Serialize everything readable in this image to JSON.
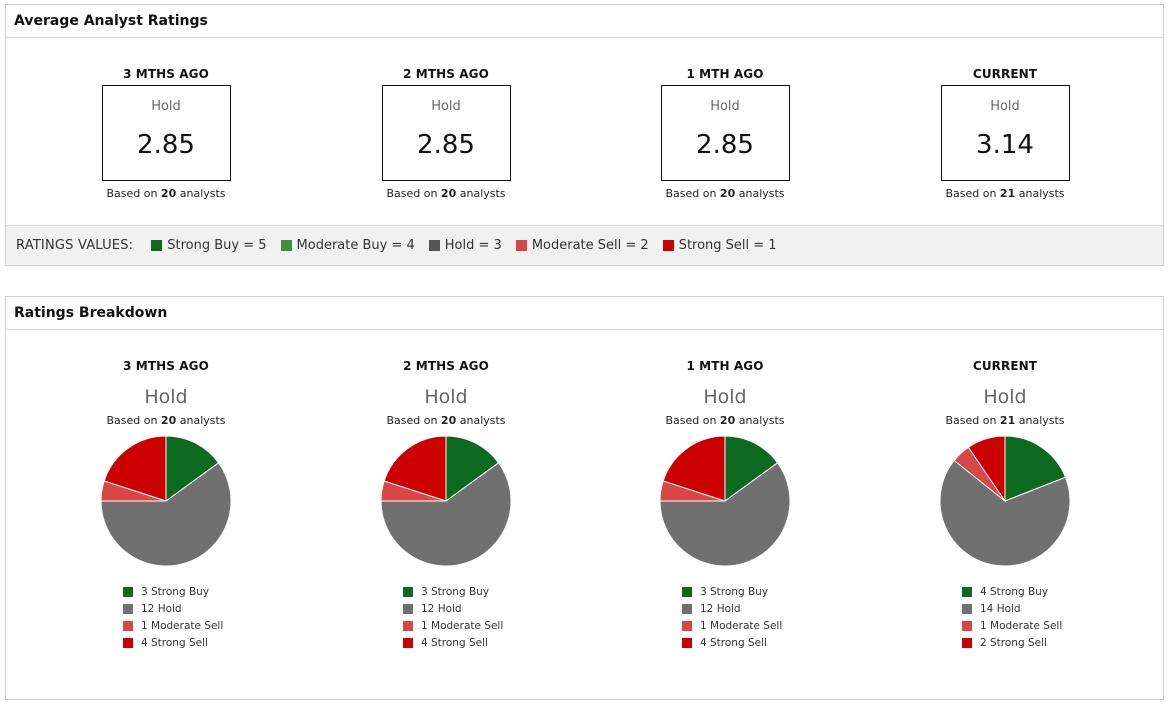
{
  "average_panel": {
    "title": "Average Analyst Ratings",
    "columns": [
      {
        "period": "3 MTHS AGO",
        "rating": "Hold",
        "value": "2.85",
        "based_prefix": "Based on",
        "analysts": "20",
        "based_suffix": "analysts"
      },
      {
        "period": "2 MTHS AGO",
        "rating": "Hold",
        "value": "2.85",
        "based_prefix": "Based on",
        "analysts": "20",
        "based_suffix": "analysts"
      },
      {
        "period": "1 MTH AGO",
        "rating": "Hold",
        "value": "2.85",
        "based_prefix": "Based on",
        "analysts": "20",
        "based_suffix": "analysts"
      },
      {
        "period": "CURRENT",
        "rating": "Hold",
        "value": "3.14",
        "based_prefix": "Based on",
        "analysts": "21",
        "based_suffix": "analysts"
      }
    ],
    "legend_title": "RATINGS VALUES:",
    "legend": [
      {
        "label": "Strong Buy = 5",
        "color": "#0b6a1f"
      },
      {
        "label": "Moderate Buy = 4",
        "color": "#3f8f3f"
      },
      {
        "label": "Hold = 3",
        "color": "#555555"
      },
      {
        "label": "Moderate Sell = 2",
        "color": "#d94646"
      },
      {
        "label": "Strong Sell = 1",
        "color": "#cc0000"
      }
    ]
  },
  "breakdown_panel": {
    "title": "Ratings Breakdown",
    "columns": [
      {
        "period": "3 MTHS AGO",
        "rating": "Hold",
        "based_prefix": "Based on",
        "analysts": "20",
        "based_suffix": "analysts",
        "slices": [
          {
            "label": "3 Strong Buy",
            "count": 3,
            "color": "#0b6a1f"
          },
          {
            "label": "12 Hold",
            "count": 12,
            "color": "#707070"
          },
          {
            "label": "1 Moderate Sell",
            "count": 1,
            "color": "#d94646"
          },
          {
            "label": "4 Strong Sell",
            "count": 4,
            "color": "#cc0000"
          }
        ]
      },
      {
        "period": "2 MTHS AGO",
        "rating": "Hold",
        "based_prefix": "Based on",
        "analysts": "20",
        "based_suffix": "analysts",
        "slices": [
          {
            "label": "3 Strong Buy",
            "count": 3,
            "color": "#0b6a1f"
          },
          {
            "label": "12 Hold",
            "count": 12,
            "color": "#707070"
          },
          {
            "label": "1 Moderate Sell",
            "count": 1,
            "color": "#d94646"
          },
          {
            "label": "4 Strong Sell",
            "count": 4,
            "color": "#cc0000"
          }
        ]
      },
      {
        "period": "1 MTH AGO",
        "rating": "Hold",
        "based_prefix": "Based on",
        "analysts": "20",
        "based_suffix": "analysts",
        "slices": [
          {
            "label": "3 Strong Buy",
            "count": 3,
            "color": "#0b6a1f"
          },
          {
            "label": "12 Hold",
            "count": 12,
            "color": "#707070"
          },
          {
            "label": "1 Moderate Sell",
            "count": 1,
            "color": "#d94646"
          },
          {
            "label": "4 Strong Sell",
            "count": 4,
            "color": "#cc0000"
          }
        ]
      },
      {
        "period": "CURRENT",
        "rating": "Hold",
        "based_prefix": "Based on",
        "analysts": "21",
        "based_suffix": "analysts",
        "slices": [
          {
            "label": "4 Strong Buy",
            "count": 4,
            "color": "#0b6a1f"
          },
          {
            "label": "14 Hold",
            "count": 14,
            "color": "#707070"
          },
          {
            "label": "1 Moderate Sell",
            "count": 1,
            "color": "#d94646"
          },
          {
            "label": "2 Strong Sell",
            "count": 2,
            "color": "#cc0000"
          }
        ]
      }
    ]
  },
  "chart_data": [
    {
      "type": "pie",
      "title": "3 MTHS AGO",
      "categories": [
        "Strong Buy",
        "Hold",
        "Moderate Sell",
        "Strong Sell"
      ],
      "values": [
        3,
        12,
        1,
        4
      ]
    },
    {
      "type": "pie",
      "title": "2 MTHS AGO",
      "categories": [
        "Strong Buy",
        "Hold",
        "Moderate Sell",
        "Strong Sell"
      ],
      "values": [
        3,
        12,
        1,
        4
      ]
    },
    {
      "type": "pie",
      "title": "1 MTH AGO",
      "categories": [
        "Strong Buy",
        "Hold",
        "Moderate Sell",
        "Strong Sell"
      ],
      "values": [
        3,
        12,
        1,
        4
      ]
    },
    {
      "type": "pie",
      "title": "CURRENT",
      "categories": [
        "Strong Buy",
        "Hold",
        "Moderate Sell",
        "Strong Sell"
      ],
      "values": [
        4,
        14,
        1,
        2
      ]
    }
  ]
}
